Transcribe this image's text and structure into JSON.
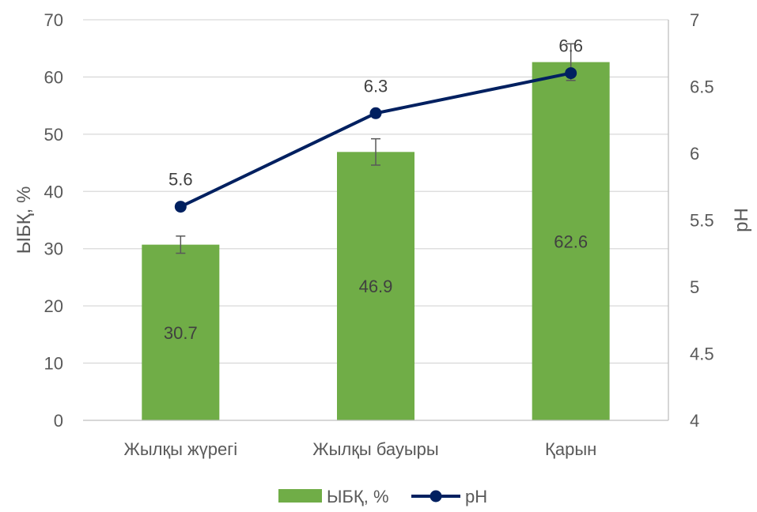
{
  "chart_data": {
    "type": "bar",
    "categories": [
      "Жылқы жүрегі",
      "Жылқы бауыры",
      "Қарын"
    ],
    "series": [
      {
        "name": "ЫБҚ, %",
        "type": "bar",
        "axis": "left",
        "values": [
          30.7,
          46.9,
          62.6
        ],
        "error": [
          1.5,
          2.3,
          3.2
        ],
        "data_labels": [
          "30.7",
          "46.9",
          "62.6"
        ],
        "color": "#70AD47"
      },
      {
        "name": "pH",
        "type": "line",
        "axis": "right",
        "values": [
          5.6,
          6.3,
          6.6
        ],
        "data_labels": [
          "5.6",
          "6.3",
          "6.6"
        ],
        "color": "#002060"
      }
    ],
    "ylabel": "ЫБҚ, %",
    "y2label": "pH",
    "ylim": [
      0,
      70
    ],
    "y2lim": [
      4,
      7
    ],
    "yticks": [
      "0",
      "10",
      "20",
      "30",
      "40",
      "50",
      "60",
      "70"
    ],
    "y2ticks": [
      "4",
      "4.5",
      "5",
      "5.5",
      "6",
      "6.5",
      "7"
    ],
    "grid": true,
    "legend": "bottom"
  }
}
